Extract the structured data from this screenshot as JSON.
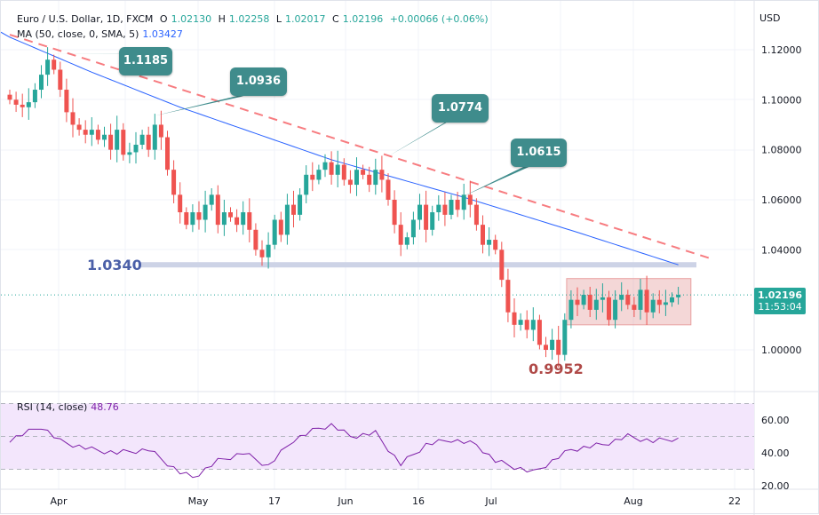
{
  "header": {
    "symbol": "Euro / U.S. Dollar, 1D, FXCM",
    "o_label": "O",
    "o": "1.02130",
    "h_label": "H",
    "h": "1.02258",
    "l_label": "L",
    "l": "1.02017",
    "c_label": "C",
    "c": "1.02196",
    "change": "+0.00066 (+0.06%)",
    "ma_label": "MA (50, close, 0, SMA, 5)",
    "ma_value": "1.03427",
    "rsi_label": "RSI (14, close)",
    "rsi_value": "48.76"
  },
  "currency": "USD",
  "last_price": {
    "price": "1.02196",
    "countdown": "11:53:04"
  },
  "colors": {
    "up": "#26a69a",
    "down": "#ef5350",
    "ma": "#2962ff",
    "trend": "#f77c80",
    "rsi": "#7e1fa8"
  },
  "callouts": [
    "1.1185",
    "1.0936",
    "1.0774",
    "1.0615"
  ],
  "annotations": {
    "support": "1.0340",
    "low": "0.9952"
  },
  "chart_data": {
    "type": "candlestick",
    "price_ticks": [
      "1.12000",
      "1.10000",
      "1.08000",
      "1.06000",
      "1.04000",
      "1.00000"
    ],
    "rsi_ticks": [
      "60.00",
      "40.00",
      "20.00"
    ],
    "x_ticks": [
      "Apr",
      "May",
      "17",
      "Jun",
      "16",
      "Jul",
      "Aug",
      "22"
    ],
    "ylim": [
      0.975,
      1.135
    ],
    "closes": [
      1.1,
      1.098,
      1.097,
      1.099,
      1.104,
      1.11,
      1.116,
      1.112,
      1.104,
      1.095,
      1.09,
      1.088,
      1.086,
      1.088,
      1.084,
      1.086,
      1.08,
      1.088,
      1.078,
      1.079,
      1.082,
      1.086,
      1.08,
      1.09,
      1.085,
      1.072,
      1.062,
      1.055,
      1.05,
      1.055,
      1.052,
      1.058,
      1.062,
      1.05,
      1.055,
      1.053,
      1.05,
      1.055,
      1.048,
      1.04,
      1.037,
      1.042,
      1.052,
      1.046,
      1.058,
      1.054,
      1.062,
      1.07,
      1.068,
      1.072,
      1.075,
      1.07,
      1.074,
      1.068,
      1.066,
      1.072,
      1.07,
      1.066,
      1.072,
      1.068,
      1.06,
      1.05,
      1.042,
      1.045,
      1.052,
      1.058,
      1.048,
      1.055,
      1.058,
      1.054,
      1.06,
      1.056,
      1.062,
      1.058,
      1.05,
      1.042,
      1.044,
      1.04,
      1.028,
      1.015,
      1.01,
      1.012,
      1.008,
      1.012,
      1.002,
      1.0,
      1.004,
      0.998,
      1.012,
      1.02,
      1.018,
      1.022,
      1.016,
      1.02,
      1.021,
      1.012,
      1.02,
      1.022,
      1.018,
      1.016,
      1.024,
      1.015,
      1.02,
      1.018,
      1.019,
      1.021,
      1.022
    ],
    "ma_keypoints": [
      [
        0,
        1.125
      ],
      [
        13,
        1.111
      ],
      [
        27,
        1.097
      ],
      [
        51,
        1.076
      ],
      [
        72,
        1.061
      ],
      [
        90,
        1.047
      ],
      [
        106,
        1.034
      ]
    ],
    "trendline": [
      [
        0,
        1.126
      ],
      [
        111,
        1.0366
      ]
    ],
    "support_level": 1.034,
    "range_box": {
      "from": 89,
      "to": 108,
      "high": 1.0285,
      "low": 1.01
    },
    "rsi_keypoints": [
      [
        0,
        48
      ],
      [
        5,
        56
      ],
      [
        8,
        47
      ],
      [
        13,
        42
      ],
      [
        17,
        40
      ],
      [
        22,
        42
      ],
      [
        27,
        28
      ],
      [
        29,
        25
      ],
      [
        33,
        35
      ],
      [
        37,
        40
      ],
      [
        41,
        32
      ],
      [
        45,
        48
      ],
      [
        49,
        55
      ],
      [
        51,
        57
      ],
      [
        54,
        50
      ],
      [
        58,
        52
      ],
      [
        62,
        33
      ],
      [
        66,
        45
      ],
      [
        70,
        48
      ],
      [
        74,
        45
      ],
      [
        77,
        35
      ],
      [
        83,
        28
      ],
      [
        89,
        42
      ],
      [
        94,
        45
      ],
      [
        98,
        50
      ],
      [
        102,
        47
      ],
      [
        106,
        49
      ]
    ],
    "callout_points": [
      [
        6,
        1.1185
      ],
      [
        23,
        1.0936
      ],
      [
        60,
        1.0774
      ],
      [
        72,
        1.0615
      ]
    ]
  }
}
